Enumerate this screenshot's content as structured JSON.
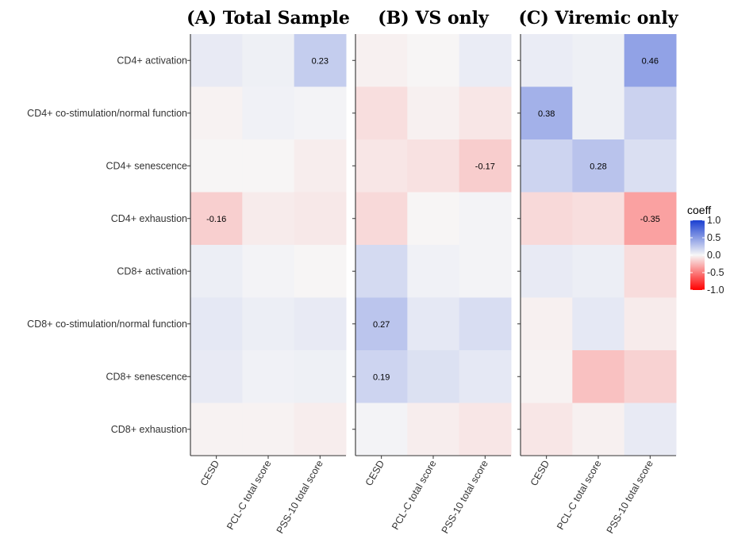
{
  "chart_data": {
    "type": "heatmap",
    "rows": [
      "CD4+ activation",
      "CD4+ co-stimulation/normal function",
      "CD4+ senescence",
      "CD4+ exhaustion",
      "CD8+ activation",
      "CD8+ co-stimulation/normal function",
      "CD8+ senescence",
      "CD8+ exhaustion"
    ],
    "columns": [
      "CESD",
      "PCL-C total score",
      "PSS-10 total score"
    ],
    "panels": [
      {
        "title": "(A) Total Sample",
        "values": [
          [
            0.07,
            0.04,
            0.23
          ],
          [
            -0.02,
            0.03,
            0.02
          ],
          [
            -0.01,
            -0.01,
            -0.04
          ],
          [
            -0.16,
            -0.05,
            -0.06
          ],
          [
            0.05,
            0.02,
            -0.01
          ],
          [
            0.08,
            0.05,
            0.07
          ],
          [
            0.07,
            0.03,
            0.04
          ],
          [
            -0.02,
            -0.02,
            -0.04
          ]
        ],
        "labels": [
          [
            "",
            "",
            "0.23"
          ],
          [
            "",
            "",
            ""
          ],
          [
            "",
            "",
            ""
          ],
          [
            "-0.16",
            "",
            ""
          ],
          [
            "",
            "",
            ""
          ],
          [
            "",
            "",
            ""
          ],
          [
            "",
            "",
            ""
          ],
          [
            "",
            "",
            ""
          ]
        ]
      },
      {
        "title": "(B) VS only",
        "values": [
          [
            -0.03,
            -0.01,
            0.06
          ],
          [
            -0.1,
            -0.03,
            -0.07
          ],
          [
            -0.07,
            -0.09,
            -0.17
          ],
          [
            -0.12,
            -0.01,
            0.02
          ],
          [
            0.16,
            0.03,
            0.02
          ],
          [
            0.27,
            0.08,
            0.14
          ],
          [
            0.19,
            0.12,
            0.08
          ],
          [
            0.02,
            -0.04,
            -0.07
          ]
        ],
        "labels": [
          [
            "",
            "",
            ""
          ],
          [
            "",
            "",
            ""
          ],
          [
            "",
            "",
            "-0.17"
          ],
          [
            "",
            "",
            ""
          ],
          [
            "",
            "",
            ""
          ],
          [
            "0.27",
            "",
            ""
          ],
          [
            "0.19",
            "",
            ""
          ],
          [
            "",
            "",
            ""
          ]
        ]
      },
      {
        "title": "(C) Viremic only",
        "values": [
          [
            0.06,
            0.04,
            0.46
          ],
          [
            0.38,
            0.04,
            0.2
          ],
          [
            0.19,
            0.28,
            0.13
          ],
          [
            -0.12,
            -0.1,
            -0.35
          ],
          [
            0.07,
            0.05,
            -0.11
          ],
          [
            -0.03,
            0.08,
            -0.05
          ],
          [
            -0.02,
            -0.22,
            -0.15
          ],
          [
            -0.07,
            -0.03,
            0.07
          ]
        ],
        "labels": [
          [
            "",
            "",
            "0.46"
          ],
          [
            "0.38",
            "",
            ""
          ],
          [
            "",
            "0.28",
            ""
          ],
          [
            "",
            "",
            "-0.35"
          ],
          [
            "",
            "",
            ""
          ],
          [
            "",
            "",
            ""
          ],
          [
            "",
            "",
            ""
          ],
          [
            "",
            "",
            ""
          ]
        ]
      }
    ],
    "legend": {
      "title": "coeff",
      "ticks": [
        "1.0",
        "0.5",
        "0.0",
        "-0.5",
        "-1.0"
      ],
      "tick_values": [
        1.0,
        0.5,
        0.0,
        -0.5,
        -1.0
      ],
      "range": [
        -1.0,
        1.0
      ],
      "low_color": "#ff0000",
      "mid_color": "#f7f7f7",
      "high_color": "#1a3fd1",
      "placement": "right"
    }
  }
}
